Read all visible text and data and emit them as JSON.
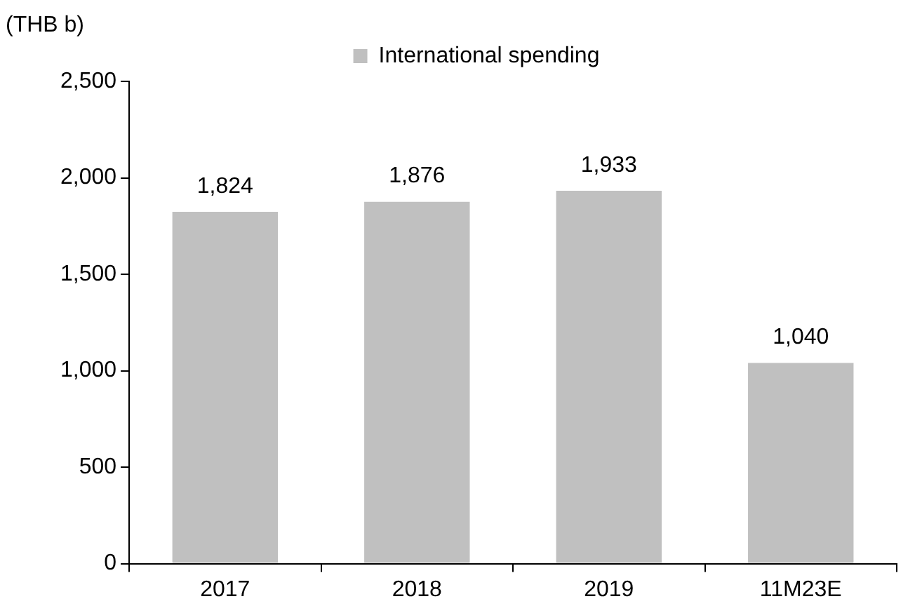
{
  "chart_data": {
    "type": "bar",
    "ylabel": "(THB b)",
    "categories": [
      "2017",
      "2018",
      "2019",
      "11M23E"
    ],
    "series": [
      {
        "name": "International spending",
        "color": "#c0c0c0",
        "values": [
          1824,
          1876,
          1933,
          1040
        ],
        "value_labels": [
          "1,824",
          "1,876",
          "1,933",
          "1,040"
        ]
      }
    ],
    "ylim": [
      0,
      2500
    ],
    "yticks": [
      0,
      500,
      {
        "value": 1000,
        "label": "1,000"
      },
      {
        "value": 1500,
        "label": "1,500"
      },
      {
        "value": 2000,
        "label": "2,000"
      },
      {
        "value": 2500,
        "label": "2,500"
      }
    ],
    "grid": false,
    "legend": "top"
  }
}
